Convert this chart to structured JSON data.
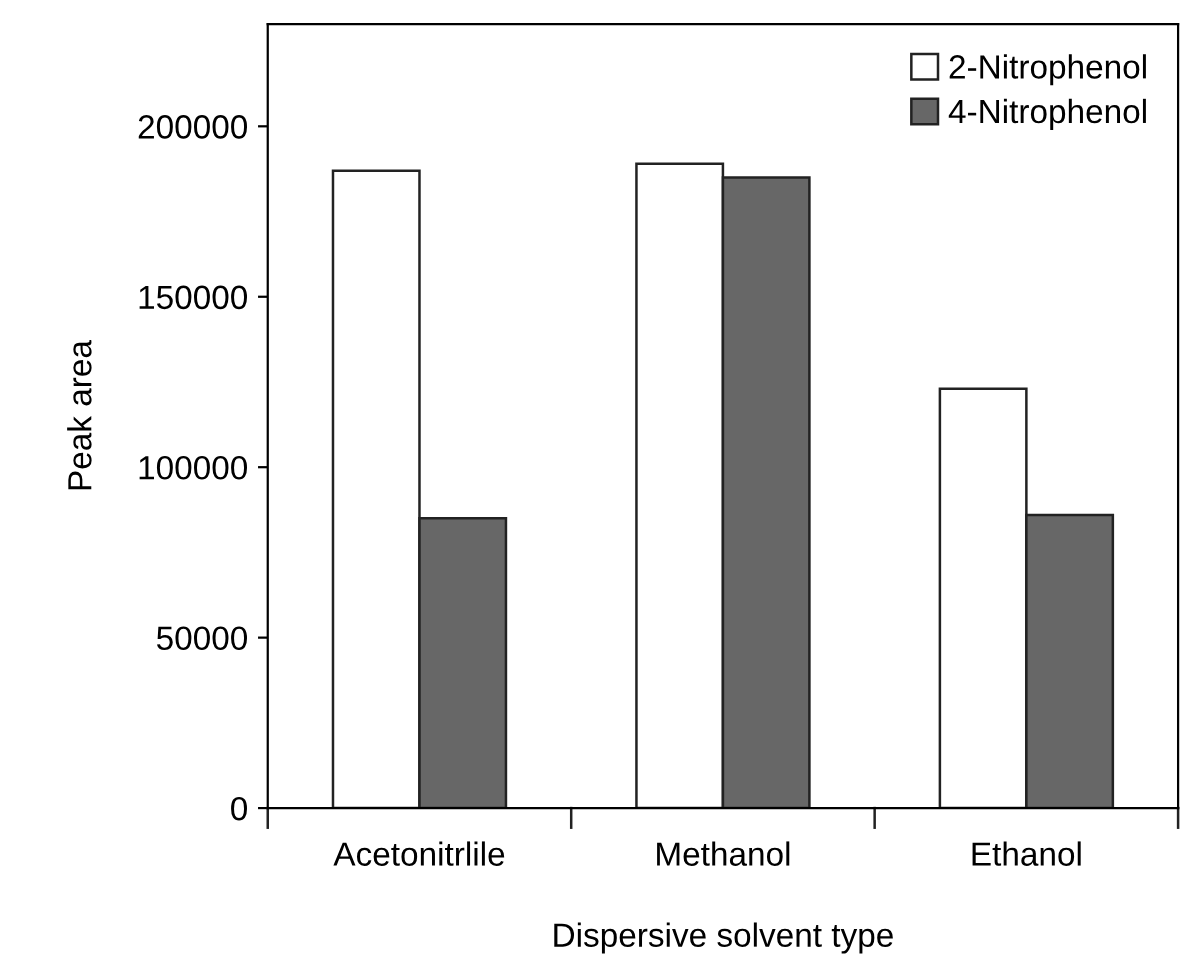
{
  "chart_data": {
    "type": "bar",
    "xlabel": "Dispersive solvent type",
    "ylabel": "Peak area",
    "categories": [
      "Acetonitrlile",
      "Methanol",
      "Ethanol"
    ],
    "series": [
      {
        "name": "2-Nitrophenol",
        "color": "#ffffff",
        "values": [
          187000,
          189000,
          123000
        ]
      },
      {
        "name": "4-Nitrophenol",
        "color": "#676767",
        "values": [
          85000,
          185000,
          86000
        ]
      }
    ],
    "ylim": [
      0,
      230000
    ],
    "yticks": [
      0,
      50000,
      100000,
      150000,
      200000
    ],
    "grid": false,
    "legend": "top right"
  }
}
